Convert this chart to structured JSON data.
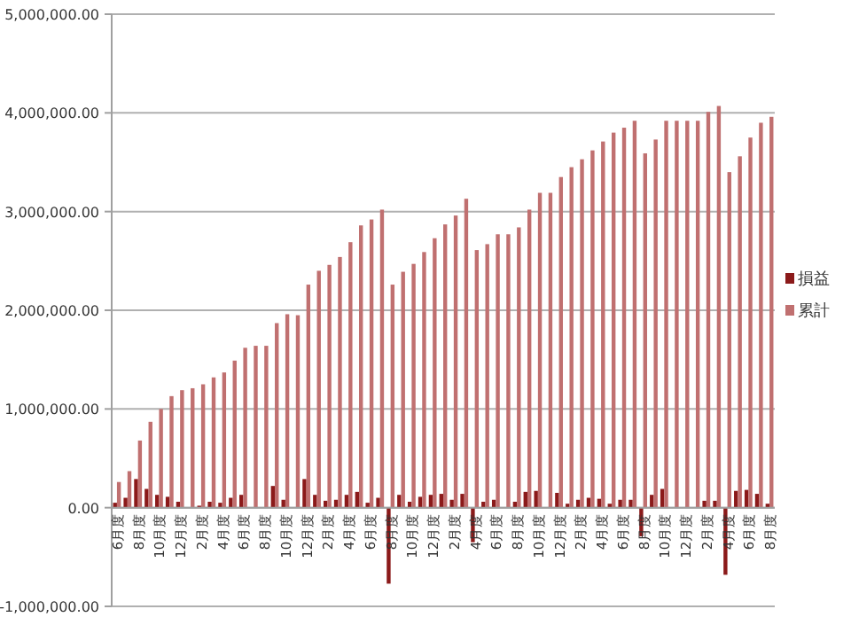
{
  "chart_data": {
    "type": "bar",
    "categories": [
      "6月度",
      null,
      "8月度",
      null,
      "10月度",
      null,
      "12月度",
      null,
      "2月度",
      null,
      "4月度",
      null,
      "6月度",
      null,
      "8月度",
      null,
      "10月度",
      null,
      "12月度",
      null,
      "2月度",
      null,
      "4月度",
      null,
      "6月度",
      null,
      "8月度",
      null,
      "10月度",
      null,
      "12月度",
      null,
      "2月度",
      null,
      "4月度",
      null,
      "6月度",
      null,
      "8月度",
      null,
      "10月度",
      null,
      "12月度",
      null,
      "2月度",
      null,
      "4月度",
      null,
      "6月度",
      null,
      "8月度",
      null,
      "10月度",
      null,
      "12月度",
      null,
      "2月度",
      null,
      "4月度",
      null,
      "6月度",
      null,
      "8月度"
    ],
    "series": [
      {
        "name": "損益",
        "color": "#8b1a1a",
        "values": [
          50000,
          100000,
          290000,
          190000,
          130000,
          110000,
          60000,
          null,
          20000,
          60000,
          50000,
          100000,
          130000,
          0,
          0,
          220000,
          80000,
          0,
          290000,
          130000,
          70000,
          80000,
          130000,
          160000,
          50000,
          100000,
          -770000,
          130000,
          60000,
          110000,
          130000,
          140000,
          80000,
          140000,
          -350000,
          60000,
          80000,
          0,
          60000,
          160000,
          170000,
          null,
          150000,
          40000,
          80000,
          100000,
          90000,
          40000,
          80000,
          80000,
          -290000,
          130000,
          190000,
          0,
          0,
          0,
          70000,
          70000,
          -680000,
          170000,
          180000,
          140000,
          40000
        ]
      },
      {
        "name": "累計",
        "color": "#c07070",
        "values": [
          260000,
          370000,
          680000,
          870000,
          1000000,
          1130000,
          1190000,
          1210000,
          1250000,
          1320000,
          1370000,
          1490000,
          1620000,
          1640000,
          1640000,
          1870000,
          1960000,
          1950000,
          2260000,
          2400000,
          2460000,
          2540000,
          2690000,
          2860000,
          2920000,
          3020000,
          2260000,
          2390000,
          2470000,
          2590000,
          2730000,
          2870000,
          2960000,
          3130000,
          2610000,
          2670000,
          2770000,
          2770000,
          2840000,
          3020000,
          3190000,
          3190000,
          3350000,
          3450000,
          3530000,
          3620000,
          3710000,
          3800000,
          3850000,
          3920000,
          3590000,
          3730000,
          3920000,
          3920000,
          3920000,
          3920000,
          4010000,
          4070000,
          3400000,
          3560000,
          3750000,
          3900000,
          3960000
        ]
      }
    ],
    "ylim": [
      -1000000,
      5000000
    ],
    "yticks": [
      {
        "value": -1000000,
        "label": "-1,000,000.00"
      },
      {
        "value": 0,
        "label": "0.00"
      },
      {
        "value": 1000000,
        "label": "1,000,000.00"
      },
      {
        "value": 2000000,
        "label": "2,000,000.00"
      },
      {
        "value": 3000000,
        "label": "3,000,000.00"
      },
      {
        "value": 4000000,
        "label": "4,000,000.00"
      },
      {
        "value": 5000000,
        "label": "5,000,000.00"
      }
    ],
    "grid": "y",
    "legend": "right"
  }
}
